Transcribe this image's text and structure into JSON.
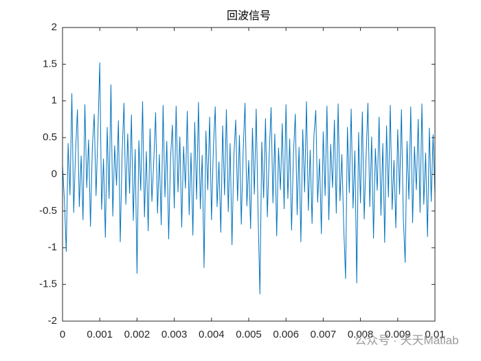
{
  "chart_data": {
    "type": "line",
    "title": "回波信号",
    "x": [
      0,
      5e-05,
      0.0001,
      0.00015,
      0.0002,
      0.00025,
      0.0003,
      0.00035,
      0.0004,
      0.00045,
      0.0005,
      0.00055,
      0.0006,
      0.00065,
      0.0007,
      0.00075,
      0.0008,
      0.00085,
      0.0009,
      0.00095,
      0.001,
      0.00105,
      0.0011,
      0.00115,
      0.0012,
      0.00125,
      0.0013,
      0.00135,
      0.0014,
      0.00145,
      0.0015,
      0.00155,
      0.0016,
      0.00165,
      0.0017,
      0.00175,
      0.0018,
      0.00185,
      0.0019,
      0.00195,
      0.002,
      0.00205,
      0.0021,
      0.00215,
      0.0022,
      0.00225,
      0.0023,
      0.00235,
      0.0024,
      0.00245,
      0.0025,
      0.00255,
      0.0026,
      0.00265,
      0.0027,
      0.00275,
      0.0028,
      0.00285,
      0.0029,
      0.00295,
      0.003,
      0.00305,
      0.0031,
      0.00315,
      0.0032,
      0.00325,
      0.0033,
      0.00335,
      0.0034,
      0.00345,
      0.0035,
      0.00355,
      0.0036,
      0.00365,
      0.0037,
      0.00375,
      0.0038,
      0.00385,
      0.0039,
      0.00395,
      0.004,
      0.00405,
      0.0041,
      0.00415,
      0.0042,
      0.00425,
      0.0043,
      0.00435,
      0.0044,
      0.00445,
      0.0045,
      0.00455,
      0.0046,
      0.00465,
      0.0047,
      0.00475,
      0.0048,
      0.00485,
      0.0049,
      0.00495,
      0.005,
      0.00505,
      0.0051,
      0.00515,
      0.0052,
      0.00525,
      0.0053,
      0.00535,
      0.0054,
      0.00545,
      0.0055,
      0.00555,
      0.0056,
      0.00565,
      0.0057,
      0.00575,
      0.0058,
      0.00585,
      0.0059,
      0.00595,
      0.006,
      0.00605,
      0.0061,
      0.00615,
      0.0062,
      0.00625,
      0.0063,
      0.00635,
      0.0064,
      0.00645,
      0.0065,
      0.00655,
      0.0066,
      0.00665,
      0.0067,
      0.00675,
      0.0068,
      0.00685,
      0.0069,
      0.00695,
      0.007,
      0.00705,
      0.0071,
      0.00715,
      0.0072,
      0.00725,
      0.0073,
      0.00735,
      0.0074,
      0.00745,
      0.0075,
      0.00755,
      0.0076,
      0.00765,
      0.0077,
      0.00775,
      0.0078,
      0.00785,
      0.0079,
      0.00795,
      0.008,
      0.00805,
      0.0081,
      0.00815,
      0.0082,
      0.00825,
      0.0083,
      0.00835,
      0.0084,
      0.00845,
      0.0085,
      0.00855,
      0.0086,
      0.00865,
      0.0087,
      0.00875,
      0.0088,
      0.00885,
      0.0089,
      0.00895,
      0.009,
      0.00905,
      0.0091,
      0.00915,
      0.0092,
      0.00925,
      0.0093,
      0.00935,
      0.0094,
      0.00945,
      0.0095,
      0.00955,
      0.0096,
      0.00965,
      0.0097,
      0.00975,
      0.0098,
      0.00985,
      0.0099,
      0.00995,
      0.01
    ],
    "series": [
      {
        "color": "#0072bd",
        "values": [
          0.12,
          -0.35,
          -1.05,
          0.42,
          -0.28,
          1.1,
          -0.52,
          0.31,
          0.88,
          -0.44,
          0.25,
          -0.62,
          0.95,
          -0.18,
          0.47,
          -0.71,
          0.36,
          0.82,
          -0.29,
          0.58,
          1.52,
          -0.48,
          0.21,
          -0.86,
          0.64,
          -0.33,
          1.22,
          -0.57,
          0.39,
          -0.15,
          0.73,
          -0.92,
          0.28,
          0.97,
          -0.41,
          0.55,
          -0.26,
          0.81,
          -0.63,
          0.34,
          -1.35,
          0.46,
          -0.22,
          0.99,
          -0.58,
          0.31,
          -0.77,
          0.62,
          -0.37,
          0.18,
          0.84,
          -0.53,
          0.27,
          -0.69,
          0.94,
          -0.31,
          0.45,
          -0.88,
          0.22,
          0.67,
          -0.46,
          0.93,
          -0.24,
          0.51,
          -0.72,
          0.38,
          -0.19,
          0.86,
          -0.55,
          0.29,
          -0.83,
          0.71,
          -0.34,
          0.98,
          -0.47,
          0.26,
          -1.27,
          0.59,
          -0.21,
          0.78,
          -0.62,
          0.35,
          0.92,
          -0.44,
          0.17,
          -0.79,
          0.66,
          -0.28,
          0.88,
          -0.51,
          0.42,
          -0.96,
          0.24,
          0.74,
          -0.36,
          0.53,
          -0.68,
          0.31,
          0.97,
          -0.43,
          0.19,
          -0.74,
          0.63,
          -0.27,
          0.89,
          -0.52,
          -1.63,
          0.44,
          -0.32,
          0.76,
          -0.58,
          0.28,
          0.91,
          -0.39,
          0.55,
          -0.84,
          0.36,
          -0.21,
          0.69,
          -0.47,
          0.95,
          -0.33,
          0.48,
          -0.76,
          0.26,
          0.82,
          -0.55,
          0.37,
          -0.92,
          0.61,
          -0.24,
          0.99,
          -0.49,
          0.33,
          -0.67,
          0.52,
          0.87,
          -0.38,
          0.21,
          -0.81,
          0.58,
          -0.29,
          0.93,
          -0.62,
          0.41,
          -0.18,
          0.74,
          -0.53,
          0.96,
          -0.36,
          0.27,
          -0.71,
          -1.42,
          0.64,
          -0.25,
          0.89,
          -0.46,
          0.32,
          -1.48,
          0.57,
          -0.39,
          0.85,
          -0.61,
          0.23,
          0.97,
          -0.44,
          0.51,
          -0.87,
          0.35,
          -0.22,
          0.78,
          -0.56,
          0.42,
          -0.93,
          0.66,
          -0.31,
          0.94,
          -0.48,
          0.19,
          -0.73,
          0.61,
          -0.27,
          0.88,
          -0.59,
          -1.2,
          0.45,
          -0.34,
          0.92,
          -0.66,
          0.38,
          -0.21,
          0.75,
          -0.52,
          0.96,
          -0.41,
          0.29,
          -0.85,
          0.63,
          -0.37,
          0.54,
          -0.28
        ]
      }
    ],
    "xlim": [
      0,
      0.01
    ],
    "xticks": [
      0,
      0.001,
      0.002,
      0.003,
      0.004,
      0.005,
      0.006,
      0.007,
      0.008,
      0.009,
      0.01
    ],
    "ylim": [
      -2,
      2
    ],
    "yticks": [
      -2,
      -1.5,
      -1,
      -0.5,
      0,
      0.5,
      1,
      1.5,
      2
    ],
    "grid": false,
    "watermark": "公众号 · 天天Matlab"
  }
}
